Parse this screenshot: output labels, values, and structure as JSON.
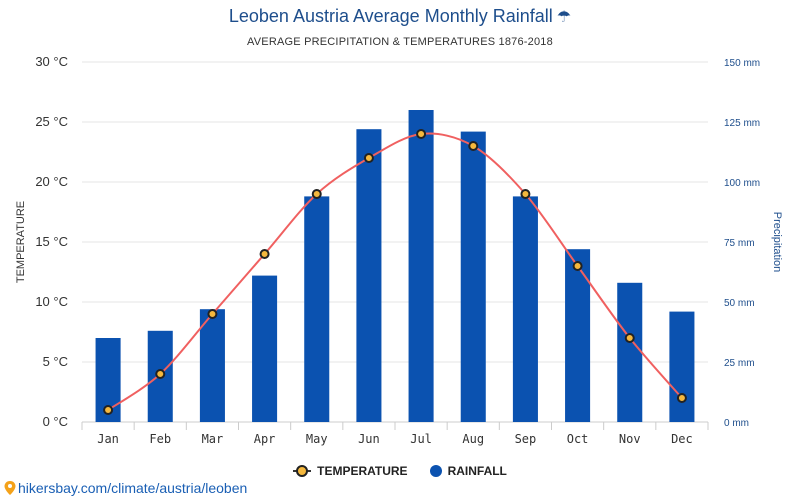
{
  "header": {
    "title": "Leoben Austria Average Monthly Rainfall",
    "title_icon": "umbrella-icon",
    "subtitle": "AVERAGE PRECIPITATION & TEMPERATURES 1876-2018"
  },
  "legend": {
    "temperature_label": "TEMPERATURE",
    "rainfall_label": "RAINFALL"
  },
  "source": {
    "text": "hikersbay.com/climate/austria/leoben",
    "icon": "location-pin-icon"
  },
  "colors": {
    "bar": "#0b52b0",
    "line": "#f06060",
    "marker_fill": "#f5b83d",
    "marker_stroke": "#222222",
    "title": "#1e4e8c",
    "grid": "#e6e6e6"
  },
  "chart_data": {
    "type": "bar+line",
    "categories": [
      "Jan",
      "Feb",
      "Mar",
      "Apr",
      "May",
      "Jun",
      "Jul",
      "Aug",
      "Sep",
      "Oct",
      "Nov",
      "Dec"
    ],
    "series": [
      {
        "name": "RAINFALL",
        "type": "bar",
        "axis": "right",
        "unit": "mm",
        "values": [
          35,
          38,
          47,
          61,
          94,
          122,
          130,
          121,
          94,
          72,
          58,
          46
        ]
      },
      {
        "name": "TEMPERATURE",
        "type": "line",
        "axis": "left",
        "unit": "°C",
        "values": [
          1,
          4,
          9,
          14,
          19,
          22,
          24,
          23,
          19,
          13,
          7,
          2
        ]
      }
    ],
    "ylabel_left": "TEMPERATURE",
    "ylabel_right": "Precipitation",
    "ylim_left": [
      0,
      30
    ],
    "ylim_right": [
      0,
      150
    ],
    "yticks_left": [
      "0 °C",
      "5 °C",
      "10 °C",
      "15 °C",
      "20 °C",
      "25 °C",
      "30 °C"
    ],
    "yticks_right": [
      "0 mm",
      "25 mm",
      "50 mm",
      "75 mm",
      "100 mm",
      "125 mm",
      "150 mm"
    ],
    "grid": true,
    "legend_position": "bottom"
  }
}
